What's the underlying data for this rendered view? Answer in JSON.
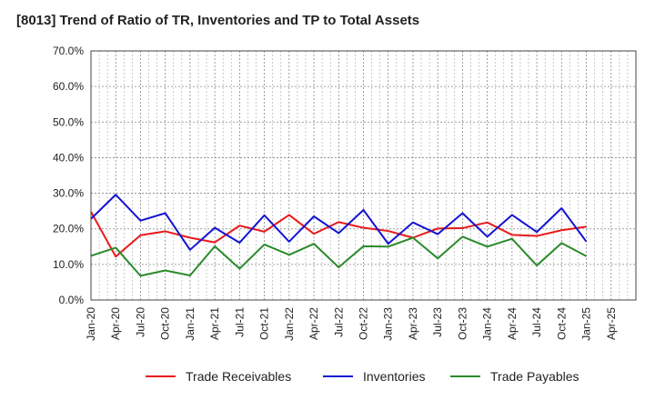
{
  "chart_data": {
    "type": "line",
    "title": "[8013]  Trend of Ratio of TR, Inventories and TP to Total Assets",
    "xlabel": "",
    "ylabel": "",
    "ylim": [
      0,
      70
    ],
    "y_ticks": [
      "0.0%",
      "10.0%",
      "20.0%",
      "30.0%",
      "40.0%",
      "50.0%",
      "60.0%",
      "70.0%"
    ],
    "x_ticks": [
      "Jan-20",
      "Apr-20",
      "Jul-20",
      "Oct-20",
      "Jan-21",
      "Apr-21",
      "Jul-21",
      "Oct-21",
      "Jan-22",
      "Apr-22",
      "Jul-22",
      "Oct-22",
      "Jan-23",
      "Apr-23",
      "Jul-23",
      "Oct-23",
      "Jan-24",
      "Apr-24",
      "Jul-24",
      "Oct-24",
      "Jan-25",
      "Apr-25"
    ],
    "categories": [
      "Jan-20",
      "Apr-20",
      "Jul-20",
      "Oct-20",
      "Jan-21",
      "Apr-21",
      "Jul-21",
      "Oct-21",
      "Jan-22",
      "Apr-22",
      "Jul-22",
      "Oct-22",
      "Jan-23",
      "Apr-23",
      "Jul-23",
      "Oct-23",
      "Jan-24",
      "Apr-24",
      "Jul-24",
      "Oct-24",
      "Jan-25"
    ],
    "grid": true,
    "legend_position": "bottom",
    "series": [
      {
        "name": "Trade Receivables",
        "color": "#e8191a",
        "values": [
          24.8,
          12.2,
          18.2,
          19.3,
          17.5,
          16.2,
          20.9,
          19.2,
          23.9,
          18.6,
          21.9,
          20.3,
          19.4,
          17.5,
          20.1,
          20.2,
          21.8,
          18.3,
          18.0,
          19.6,
          20.6
        ]
      },
      {
        "name": "Inventories",
        "color": "#1414d2",
        "values": [
          22.8,
          29.6,
          22.3,
          24.4,
          14.1,
          20.3,
          16.1,
          23.8,
          16.4,
          23.5,
          18.8,
          25.3,
          15.8,
          21.8,
          18.5,
          24.4,
          17.8,
          23.9,
          19.1,
          25.8,
          16.4
        ]
      },
      {
        "name": "Trade Payables",
        "color": "#2b8a2b",
        "values": [
          12.4,
          14.7,
          6.8,
          8.3,
          6.9,
          15.1,
          8.8,
          15.6,
          12.7,
          15.8,
          9.2,
          15.1,
          15.0,
          17.5,
          11.7,
          17.8,
          15.0,
          17.2,
          9.7,
          16.0,
          12.3
        ]
      }
    ]
  }
}
